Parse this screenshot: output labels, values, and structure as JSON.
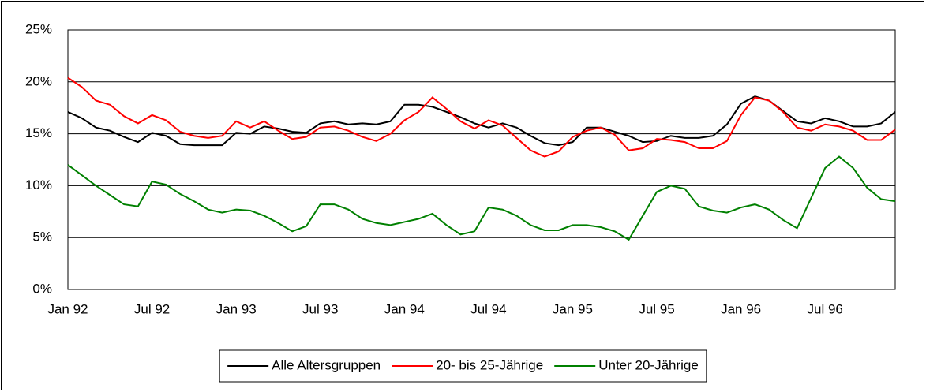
{
  "chart_data": {
    "type": "line",
    "categories": [
      "Jan 92",
      null,
      null,
      null,
      null,
      null,
      "Jul 92",
      null,
      null,
      null,
      null,
      null,
      "Jan 93",
      null,
      null,
      null,
      null,
      null,
      "Jul 93",
      null,
      null,
      null,
      null,
      null,
      "Jan 94",
      null,
      null,
      null,
      null,
      null,
      "Jul 94",
      null,
      null,
      null,
      null,
      null,
      "Jan 95",
      null,
      null,
      null,
      null,
      null,
      "Jul 95",
      null,
      null,
      null,
      null,
      null,
      "Jan 96",
      null,
      null,
      null,
      null,
      null,
      "Jul 96",
      null,
      null,
      null,
      null,
      null
    ],
    "series": [
      {
        "name": "Alle Altersgruppen",
        "color": "#000000",
        "values": [
          17.1,
          16.5,
          15.6,
          15.3,
          14.7,
          14.2,
          15.1,
          14.8,
          14.0,
          13.9,
          13.9,
          13.9,
          15.1,
          15.0,
          15.7,
          15.5,
          15.2,
          15.1,
          16.0,
          16.2,
          15.9,
          16.0,
          15.9,
          16.2,
          17.8,
          17.8,
          17.6,
          17.1,
          16.6,
          16.0,
          15.6,
          16.0,
          15.6,
          14.8,
          14.1,
          13.9,
          14.2,
          15.6,
          15.6,
          15.2,
          14.8,
          14.2,
          14.3,
          14.8,
          14.6,
          14.6,
          14.8,
          15.9,
          17.9,
          18.6,
          18.2,
          17.2,
          16.2,
          16.0,
          16.5,
          16.2,
          15.7,
          15.7,
          16.0,
          17.1
        ]
      },
      {
        "name": "20- bis 25-Jährige",
        "color": "#ff0000",
        "values": [
          20.4,
          19.5,
          18.2,
          17.8,
          16.7,
          16.0,
          16.8,
          16.3,
          15.2,
          14.8,
          14.6,
          14.8,
          16.2,
          15.6,
          16.2,
          15.3,
          14.5,
          14.7,
          15.6,
          15.7,
          15.3,
          14.7,
          14.3,
          15.0,
          16.3,
          17.1,
          18.5,
          17.4,
          16.2,
          15.5,
          16.3,
          15.8,
          14.6,
          13.4,
          12.8,
          13.3,
          14.7,
          15.3,
          15.6,
          14.9,
          13.4,
          13.6,
          14.5,
          14.4,
          14.2,
          13.6,
          13.6,
          14.3,
          16.8,
          18.5,
          18.2,
          17.1,
          15.6,
          15.3,
          15.9,
          15.7,
          15.3,
          14.4,
          14.4,
          15.4
        ]
      },
      {
        "name": "Unter 20-Jährige",
        "color": "#008000",
        "values": [
          12.0,
          11.0,
          10.0,
          9.1,
          8.2,
          8.0,
          10.4,
          10.1,
          9.2,
          8.5,
          7.7,
          7.4,
          7.7,
          7.6,
          7.1,
          6.4,
          5.6,
          6.1,
          8.2,
          8.2,
          7.7,
          6.8,
          6.4,
          6.2,
          6.5,
          6.8,
          7.3,
          6.2,
          5.3,
          5.6,
          7.9,
          7.7,
          7.1,
          6.2,
          5.7,
          5.7,
          6.2,
          6.2,
          6.0,
          5.6,
          4.8,
          7.1,
          9.4,
          10.0,
          9.7,
          8.0,
          7.6,
          7.4,
          7.9,
          8.2,
          7.7,
          6.7,
          5.9,
          8.8,
          11.7,
          12.8,
          11.7,
          9.8,
          8.7,
          8.5
        ]
      }
    ],
    "ylim": [
      0,
      25
    ],
    "yticks": [
      {
        "value": 0,
        "label": "0%"
      },
      {
        "value": 5,
        "label": "5%"
      },
      {
        "value": 10,
        "label": "10%"
      },
      {
        "value": 15,
        "label": "15%"
      },
      {
        "value": 20,
        "label": "20%"
      },
      {
        "value": 25,
        "label": "25%"
      }
    ],
    "grid": true,
    "legend": "bottom"
  }
}
